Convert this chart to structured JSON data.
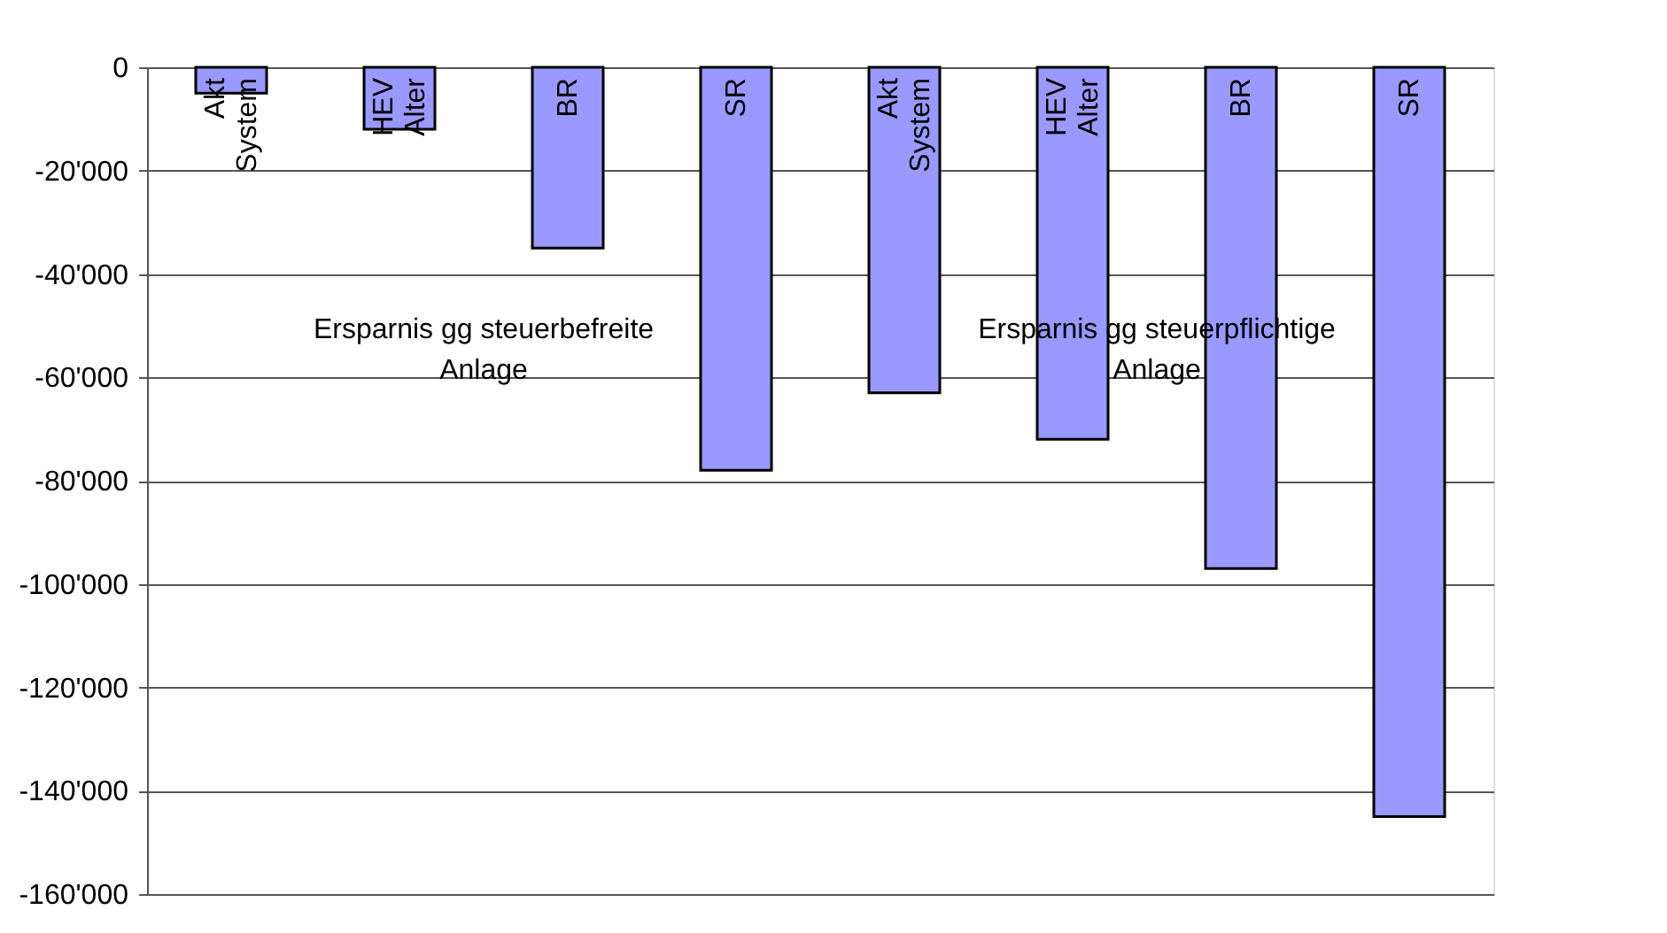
{
  "chart_data": {
    "type": "bar",
    "categories": [
      "Akt System",
      "HEV Alter",
      "BR",
      "SR",
      "Akt System",
      "HEV Alter",
      "BR",
      "SR"
    ],
    "values": [
      -5000,
      -12000,
      -35000,
      -78000,
      -63000,
      -72000,
      -97000,
      -145000
    ],
    "color": "#9999ff",
    "ylim": [
      -160000,
      0
    ],
    "yticks": [
      {
        "value": 0,
        "label": "0"
      },
      {
        "value": -20000,
        "label": "-20'000"
      },
      {
        "value": -40000,
        "label": "-40'000"
      },
      {
        "value": -60000,
        "label": "-60'000"
      },
      {
        "value": -80000,
        "label": "-80'000"
      },
      {
        "value": -100000,
        "label": "-100'000"
      },
      {
        "value": -120000,
        "label": "-120'000"
      },
      {
        "value": -140000,
        "label": "-140'000"
      },
      {
        "value": -160000,
        "label": "-160'000"
      }
    ],
    "annotations": [
      "Ersparnis gg steuerbefreite Anlage",
      "Ersparnis gg steuerpflichtige Anlage"
    ],
    "grid": "y"
  }
}
